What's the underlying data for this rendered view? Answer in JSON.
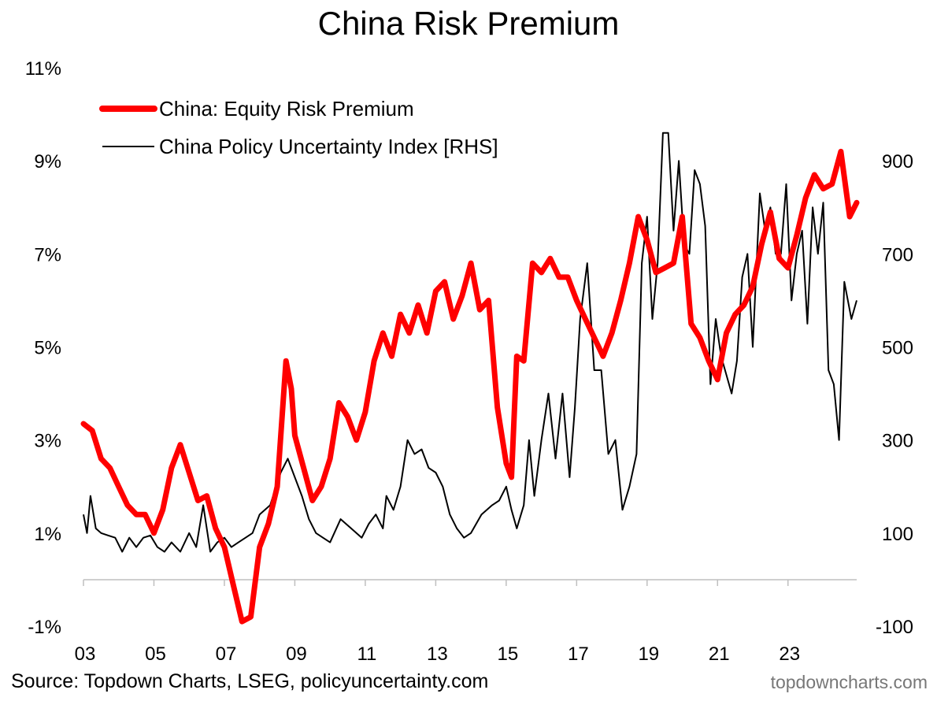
{
  "chart_data": {
    "type": "line",
    "title": "China Risk Premium",
    "xlabel": "",
    "x_tick_labels": [
      "03",
      "05",
      "07",
      "09",
      "11",
      "13",
      "15",
      "17",
      "19",
      "21",
      "23"
    ],
    "x_tick_years": [
      2003,
      2005,
      2007,
      2009,
      2011,
      2013,
      2015,
      2017,
      2019,
      2021,
      2023
    ],
    "xlim": [
      2003.0,
      2024.95
    ],
    "left_axis": {
      "ylabel": "",
      "ylim": [
        -1,
        11
      ],
      "ticks": [
        -1,
        1,
        3,
        5,
        7,
        9,
        11
      ],
      "tick_labels": [
        "-1%",
        "1%",
        "3%",
        "5%",
        "7%",
        "9%",
        "11%"
      ]
    },
    "right_axis": {
      "ylabel": "",
      "ylim": [
        -100,
        1100
      ],
      "ticks": [
        -100,
        100,
        300,
        500,
        700,
        900
      ],
      "tick_labels": [
        "-100",
        "100",
        "300",
        "500",
        "700",
        "900"
      ]
    },
    "legend": {
      "position": "top-left"
    },
    "series": [
      {
        "name": "China: Equity Risk Premium",
        "axis": "left",
        "color": "#FF0000",
        "x": [
          2003.0,
          2003.25,
          2003.5,
          2003.75,
          2004.0,
          2004.25,
          2004.5,
          2004.75,
          2005.0,
          2005.25,
          2005.5,
          2005.75,
          2006.0,
          2006.25,
          2006.5,
          2006.75,
          2007.0,
          2007.25,
          2007.5,
          2007.75,
          2008.0,
          2008.25,
          2008.5,
          2008.75,
          2008.9,
          2009.0,
          2009.25,
          2009.5,
          2009.75,
          2010.0,
          2010.25,
          2010.5,
          2010.75,
          2011.0,
          2011.25,
          2011.5,
          2011.75,
          2012.0,
          2012.25,
          2012.5,
          2012.75,
          2013.0,
          2013.25,
          2013.5,
          2013.75,
          2014.0,
          2014.25,
          2014.5,
          2014.75,
          2015.0,
          2015.15,
          2015.3,
          2015.5,
          2015.75,
          2016.0,
          2016.25,
          2016.5,
          2016.75,
          2017.0,
          2017.25,
          2017.5,
          2017.75,
          2018.0,
          2018.25,
          2018.5,
          2018.75,
          2019.0,
          2019.25,
          2019.5,
          2019.75,
          2020.0,
          2020.25,
          2020.5,
          2020.75,
          2021.0,
          2021.25,
          2021.5,
          2021.75,
          2022.0,
          2022.25,
          2022.5,
          2022.75,
          2023.0,
          2023.25,
          2023.5,
          2023.75,
          2024.0,
          2024.25,
          2024.5,
          2024.75,
          2024.95
        ],
        "values": [
          3.35,
          3.2,
          2.6,
          2.4,
          2.0,
          1.6,
          1.4,
          1.4,
          1.0,
          1.5,
          2.4,
          2.9,
          2.3,
          1.7,
          1.8,
          1.1,
          0.7,
          -0.1,
          -0.9,
          -0.8,
          0.7,
          1.2,
          2.0,
          4.7,
          4.1,
          3.1,
          2.4,
          1.7,
          2.0,
          2.6,
          3.8,
          3.5,
          3.0,
          3.6,
          4.7,
          5.3,
          4.8,
          5.7,
          5.3,
          5.9,
          5.3,
          6.2,
          6.4,
          5.6,
          6.1,
          6.8,
          5.8,
          6.0,
          3.7,
          2.5,
          2.2,
          4.8,
          4.7,
          6.8,
          6.6,
          6.9,
          6.5,
          6.5,
          6.0,
          5.6,
          5.2,
          4.8,
          5.3,
          6.0,
          6.8,
          7.8,
          7.3,
          6.6,
          6.7,
          6.8,
          7.8,
          5.5,
          5.2,
          4.7,
          4.3,
          5.3,
          5.7,
          5.9,
          6.3,
          7.2,
          7.9,
          6.9,
          6.7,
          7.4,
          8.2,
          8.7,
          8.4,
          8.5,
          9.2,
          7.8,
          8.1
        ]
      },
      {
        "name": "China Policy Uncertainty Index [RHS]",
        "axis": "right",
        "color": "#000000",
        "x": [
          2003.0,
          2003.1,
          2003.2,
          2003.35,
          2003.5,
          2003.7,
          2003.9,
          2004.1,
          2004.3,
          2004.5,
          2004.7,
          2004.9,
          2005.1,
          2005.3,
          2005.5,
          2005.75,
          2006.0,
          2006.2,
          2006.4,
          2006.6,
          2006.8,
          2007.0,
          2007.2,
          2007.4,
          2007.6,
          2007.8,
          2008.0,
          2008.3,
          2008.6,
          2008.8,
          2009.0,
          2009.2,
          2009.4,
          2009.6,
          2009.8,
          2010.0,
          2010.3,
          2010.6,
          2010.9,
          2011.1,
          2011.3,
          2011.5,
          2011.6,
          2011.8,
          2012.0,
          2012.2,
          2012.4,
          2012.6,
          2012.8,
          2013.0,
          2013.2,
          2013.4,
          2013.6,
          2013.8,
          2014.0,
          2014.3,
          2014.6,
          2014.8,
          2015.0,
          2015.15,
          2015.3,
          2015.5,
          2015.65,
          2015.8,
          2016.0,
          2016.2,
          2016.4,
          2016.6,
          2016.8,
          2016.95,
          2017.1,
          2017.3,
          2017.5,
          2017.7,
          2017.9,
          2018.1,
          2018.3,
          2018.5,
          2018.7,
          2018.85,
          2019.0,
          2019.15,
          2019.3,
          2019.45,
          2019.6,
          2019.75,
          2019.9,
          2020.05,
          2020.2,
          2020.35,
          2020.5,
          2020.65,
          2020.8,
          2020.95,
          2021.1,
          2021.25,
          2021.4,
          2021.55,
          2021.7,
          2021.85,
          2022.0,
          2022.2,
          2022.35,
          2022.5,
          2022.65,
          2022.8,
          2022.95,
          2023.1,
          2023.25,
          2023.4,
          2023.55,
          2023.7,
          2023.85,
          2024.0,
          2024.15,
          2024.3,
          2024.45,
          2024.6,
          2024.8,
          2024.95
        ],
        "values": [
          140,
          100,
          180,
          110,
          100,
          95,
          90,
          60,
          90,
          70,
          90,
          95,
          70,
          60,
          80,
          60,
          100,
          70,
          160,
          60,
          80,
          90,
          70,
          80,
          90,
          100,
          140,
          160,
          230,
          260,
          220,
          180,
          130,
          100,
          90,
          80,
          130,
          110,
          90,
          120,
          140,
          110,
          180,
          150,
          200,
          300,
          270,
          280,
          240,
          230,
          200,
          140,
          110,
          90,
          100,
          140,
          160,
          170,
          200,
          150,
          110,
          160,
          300,
          180,
          300,
          400,
          260,
          400,
          220,
          370,
          560,
          680,
          450,
          450,
          270,
          300,
          150,
          200,
          270,
          680,
          780,
          560,
          680,
          960,
          960,
          750,
          900,
          720,
          700,
          880,
          850,
          760,
          420,
          560,
          480,
          440,
          400,
          470,
          650,
          700,
          500,
          830,
          750,
          800,
          700,
          700,
          850,
          600,
          700,
          750,
          550,
          800,
          700,
          810,
          450,
          420,
          300,
          640,
          560,
          600
        ]
      }
    ]
  },
  "source": "Source: Topdown Charts, LSEG, policyuncertainty.com",
  "brand": "topdowncharts.com"
}
